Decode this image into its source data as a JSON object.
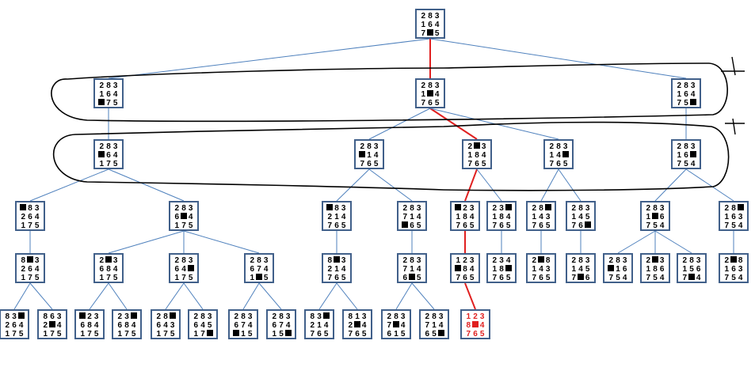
{
  "blank_symbol": "■",
  "colors": {
    "edge": "#4f81bd",
    "node_border": "#41608a",
    "solution": "#e02020",
    "outline": "#000000"
  },
  "annotations": [
    "",
    ""
  ],
  "nodes": [
    {
      "id": "n0",
      "parent": null,
      "cells": [
        "2",
        "8",
        "3",
        "1",
        "6",
        "4",
        "7",
        "■",
        "5"
      ]
    },
    {
      "id": "n1a",
      "parent": "n0",
      "cells": [
        "2",
        "8",
        "3",
        "1",
        "6",
        "4",
        "■",
        "7",
        "5"
      ]
    },
    {
      "id": "n1b",
      "parent": "n0",
      "cells": [
        "2",
        "8",
        "3",
        "1",
        "■",
        "4",
        "7",
        "6",
        "5"
      ],
      "solution": true
    },
    {
      "id": "n1c",
      "parent": "n0",
      "cells": [
        "2",
        "8",
        "3",
        "1",
        "6",
        "4",
        "7",
        "5",
        "■"
      ]
    },
    {
      "id": "n2a",
      "parent": "n1a",
      "cells": [
        "2",
        "8",
        "3",
        "■",
        "6",
        "4",
        "1",
        "7",
        "5"
      ]
    },
    {
      "id": "n2b",
      "parent": "n1b",
      "cells": [
        "2",
        "8",
        "3",
        "■",
        "1",
        "4",
        "7",
        "6",
        "5"
      ]
    },
    {
      "id": "n2c",
      "parent": "n1b",
      "cells": [
        "2",
        "■",
        "3",
        "1",
        "8",
        "4",
        "7",
        "6",
        "5"
      ],
      "solution": true
    },
    {
      "id": "n2d",
      "parent": "n1b",
      "cells": [
        "2",
        "8",
        "3",
        "1",
        "4",
        "■",
        "7",
        "6",
        "5"
      ]
    },
    {
      "id": "n2e",
      "parent": "n1c",
      "cells": [
        "2",
        "8",
        "3",
        "1",
        "6",
        "■",
        "7",
        "5",
        "4"
      ]
    },
    {
      "id": "n3a",
      "parent": "n2a",
      "cells": [
        "■",
        "8",
        "3",
        "2",
        "6",
        "4",
        "1",
        "7",
        "5"
      ]
    },
    {
      "id": "n3b",
      "parent": "n2a",
      "cells": [
        "2",
        "8",
        "3",
        "6",
        "■",
        "4",
        "1",
        "7",
        "5"
      ]
    },
    {
      "id": "n3c",
      "parent": "n2b",
      "cells": [
        "■",
        "8",
        "3",
        "2",
        "1",
        "4",
        "7",
        "6",
        "5"
      ]
    },
    {
      "id": "n3d",
      "parent": "n2b",
      "cells": [
        "2",
        "8",
        "3",
        "7",
        "1",
        "4",
        "■",
        "6",
        "5"
      ]
    },
    {
      "id": "n3e",
      "parent": "n2c",
      "cells": [
        "■",
        "2",
        "3",
        "1",
        "8",
        "4",
        "7",
        "6",
        "5"
      ],
      "solution": true
    },
    {
      "id": "n3f",
      "parent": "n2c",
      "cells": [
        "2",
        "3",
        "■",
        "1",
        "8",
        "4",
        "7",
        "6",
        "5"
      ]
    },
    {
      "id": "n3g",
      "parent": "n2d",
      "cells": [
        "2",
        "8",
        "■",
        "1",
        "4",
        "3",
        "7",
        "6",
        "5"
      ]
    },
    {
      "id": "n3h",
      "parent": "n2d",
      "cells": [
        "2",
        "8",
        "3",
        "1",
        "4",
        "5",
        "7",
        "6",
        "■"
      ]
    },
    {
      "id": "n3i",
      "parent": "n2e",
      "cells": [
        "2",
        "8",
        "3",
        "1",
        "■",
        "6",
        "7",
        "5",
        "4"
      ]
    },
    {
      "id": "n3j",
      "parent": "n2e",
      "cells": [
        "2",
        "8",
        "■",
        "1",
        "6",
        "3",
        "7",
        "5",
        "4"
      ]
    },
    {
      "id": "n4a",
      "parent": "n3a",
      "cells": [
        "8",
        "■",
        "3",
        "2",
        "6",
        "4",
        "1",
        "7",
        "5"
      ]
    },
    {
      "id": "n4b",
      "parent": "n3b",
      "cells": [
        "2",
        "■",
        "3",
        "6",
        "8",
        "4",
        "1",
        "7",
        "5"
      ]
    },
    {
      "id": "n4c",
      "parent": "n3b",
      "cells": [
        "2",
        "8",
        "3",
        "6",
        "4",
        "■",
        "1",
        "7",
        "5"
      ]
    },
    {
      "id": "n4d",
      "parent": "n3b",
      "cells": [
        "2",
        "8",
        "3",
        "6",
        "7",
        "4",
        "1",
        "■",
        "5"
      ]
    },
    {
      "id": "n4e",
      "parent": "n3c",
      "cells": [
        "8",
        "■",
        "3",
        "2",
        "1",
        "4",
        "7",
        "6",
        "5"
      ]
    },
    {
      "id": "n4f",
      "parent": "n3d",
      "cells": [
        "2",
        "8",
        "3",
        "7",
        "1",
        "4",
        "6",
        "■",
        "5"
      ]
    },
    {
      "id": "n4g",
      "parent": "n3e",
      "cells": [
        "1",
        "2",
        "3",
        "■",
        "8",
        "4",
        "7",
        "6",
        "5"
      ],
      "solution": true
    },
    {
      "id": "n4h",
      "parent": "n3f",
      "cells": [
        "2",
        "3",
        "4",
        "1",
        "8",
        "■",
        "7",
        "6",
        "5"
      ]
    },
    {
      "id": "n4i",
      "parent": "n3g",
      "cells": [
        "2",
        "■",
        "8",
        "1",
        "4",
        "3",
        "7",
        "6",
        "5"
      ]
    },
    {
      "id": "n4j",
      "parent": "n3h",
      "cells": [
        "2",
        "8",
        "3",
        "1",
        "4",
        "5",
        "7",
        "■",
        "6"
      ]
    },
    {
      "id": "n4k",
      "parent": "n3i",
      "cells": [
        "2",
        "8",
        "3",
        "■",
        "1",
        "6",
        "7",
        "5",
        "4"
      ]
    },
    {
      "id": "n4l",
      "parent": "n3i",
      "cells": [
        "2",
        "■",
        "3",
        "1",
        "8",
        "6",
        "7",
        "5",
        "4"
      ]
    },
    {
      "id": "n4m",
      "parent": "n3i",
      "cells": [
        "2",
        "8",
        "3",
        "1",
        "5",
        "6",
        "7",
        "■",
        "4"
      ]
    },
    {
      "id": "n4n",
      "parent": "n3j",
      "cells": [
        "2",
        "■",
        "8",
        "1",
        "6",
        "3",
        "7",
        "5",
        "4"
      ]
    },
    {
      "id": "n5a",
      "parent": "n4a",
      "cells": [
        "8",
        "3",
        "■",
        "2",
        "6",
        "4",
        "1",
        "7",
        "5"
      ]
    },
    {
      "id": "n5b",
      "parent": "n4a",
      "cells": [
        "8",
        "6",
        "3",
        "2",
        "■",
        "4",
        "1",
        "7",
        "5"
      ]
    },
    {
      "id": "n5c",
      "parent": "n4b",
      "cells": [
        "■",
        "2",
        "3",
        "6",
        "8",
        "4",
        "1",
        "7",
        "5"
      ]
    },
    {
      "id": "n5d",
      "parent": "n4b",
      "cells": [
        "2",
        "3",
        "■",
        "6",
        "8",
        "4",
        "1",
        "7",
        "5"
      ]
    },
    {
      "id": "n5e",
      "parent": "n4c",
      "cells": [
        "2",
        "8",
        "■",
        "6",
        "4",
        "3",
        "1",
        "7",
        "5"
      ]
    },
    {
      "id": "n5f",
      "parent": "n4c",
      "cells": [
        "2",
        "8",
        "3",
        "6",
        "4",
        "5",
        "1",
        "7",
        "■"
      ]
    },
    {
      "id": "n5g",
      "parent": "n4d",
      "cells": [
        "2",
        "8",
        "3",
        "6",
        "7",
        "4",
        "■",
        "1",
        "5"
      ]
    },
    {
      "id": "n5h",
      "parent": "n4d",
      "cells": [
        "2",
        "8",
        "3",
        "6",
        "7",
        "4",
        "1",
        "5",
        "■"
      ]
    },
    {
      "id": "n5i",
      "parent": "n4e",
      "cells": [
        "8",
        "3",
        "■",
        "2",
        "1",
        "4",
        "7",
        "6",
        "5"
      ]
    },
    {
      "id": "n5j",
      "parent": "n4e",
      "cells": [
        "8",
        "1",
        "3",
        "2",
        "■",
        "4",
        "7",
        "6",
        "5"
      ]
    },
    {
      "id": "n5k",
      "parent": "n4f",
      "cells": [
        "2",
        "8",
        "3",
        "7",
        "■",
        "4",
        "6",
        "1",
        "5"
      ]
    },
    {
      "id": "n5l",
      "parent": "n4f",
      "cells": [
        "2",
        "8",
        "3",
        "7",
        "1",
        "4",
        "6",
        "5",
        "■"
      ]
    },
    {
      "id": "n5m",
      "parent": "n4g",
      "cells": [
        "1",
        "2",
        "3",
        "8",
        "■",
        "4",
        "7",
        "6",
        "5"
      ],
      "solution": true,
      "goal": true
    }
  ]
}
